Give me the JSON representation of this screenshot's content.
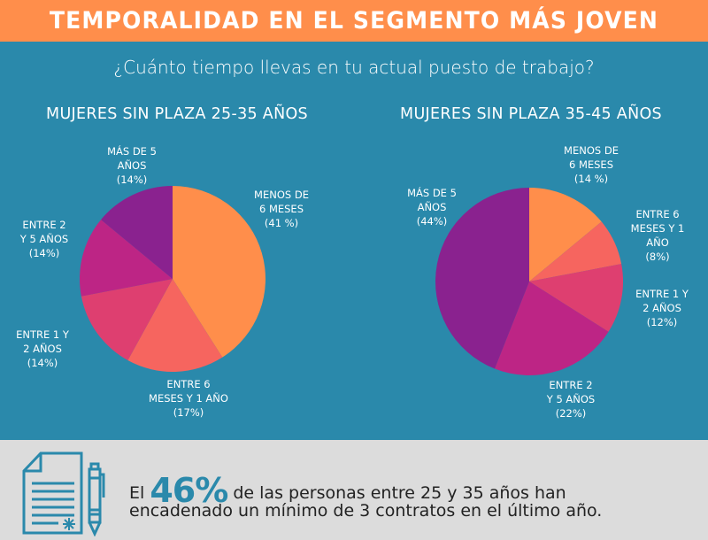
{
  "header": {
    "title": "TEMPORALIDAD EN EL SEGMENTO MÁS JOVEN"
  },
  "question": "¿Cuánto tiempo llevas en tu actual puesto de trabajo?",
  "colors": {
    "header_bg": "#ff8e4b",
    "main_bg": "#2a89ab",
    "footer_bg": "#dcdcdc",
    "accent": "#2a89ab"
  },
  "chart_data": [
    {
      "type": "pie",
      "title": "MUJERES SIN PLAZA 25-35 AÑOS",
      "start": "top",
      "direction": "clockwise",
      "slices": [
        {
          "label_lines": [
            "MENOS DE",
            "6 MESES",
            "(41 %)"
          ],
          "category": "Menos de 6 meses",
          "value": 41,
          "color": "#ff8e4b"
        },
        {
          "label_lines": [
            "ENTRE 6",
            "MESES Y 1 AÑO",
            "(17%)"
          ],
          "category": "Entre 6 meses y 1 año",
          "value": 17,
          "color": "#f6655f"
        },
        {
          "label_lines": [
            "ENTRE 1 Y",
            "2 AÑOS",
            "(14%)"
          ],
          "category": "Entre 1 y 2 años",
          "value": 14,
          "color": "#de3f70"
        },
        {
          "label_lines": [
            "ENTRE 2",
            "Y 5 AÑOS",
            "(14%)"
          ],
          "category": "Entre 2 y 5 años",
          "value": 14,
          "color": "#bd2585"
        },
        {
          "label_lines": [
            "MÁS DE 5",
            "AÑOS",
            "(14%)"
          ],
          "category": "Más de 5 años",
          "value": 14,
          "color": "#8a228f"
        }
      ]
    },
    {
      "type": "pie",
      "title": "MUJERES SIN PLAZA 35-45 AÑOS",
      "start": "top",
      "direction": "clockwise",
      "slices": [
        {
          "label_lines": [
            "MENOS DE",
            "6 MESES",
            "(14 %)"
          ],
          "category": "Menos de 6 meses",
          "value": 14,
          "color": "#ff8e4b"
        },
        {
          "label_lines": [
            "ENTRE 6",
            "MESES Y 1",
            "AÑO",
            "(8%)"
          ],
          "category": "Entre 6 meses y 1 año",
          "value": 8,
          "color": "#f6655f"
        },
        {
          "label_lines": [
            "ENTRE 1 Y",
            "2 AÑOS",
            "(12%)"
          ],
          "category": "Entre 1 y 2 años",
          "value": 12,
          "color": "#de3f70"
        },
        {
          "label_lines": [
            "ENTRE 2",
            "Y 5 AÑOS",
            "(22%)"
          ],
          "category": "Entre 2 y 5 años",
          "value": 22,
          "color": "#bd2585"
        },
        {
          "label_lines": [
            "MÁS DE 5",
            "AÑOS",
            "(44%)"
          ],
          "category": "Más de 5 años",
          "value": 44,
          "color": "#8a228f"
        }
      ]
    }
  ],
  "footer": {
    "icon": "contract-document-pen-icon",
    "stat_prefix": "El",
    "stat_value": "46%",
    "stat_line1_rest": "de las personas entre 25 y 35 años han",
    "stat_line2": "encadenado un mínimo de 3 contratos en el último año."
  }
}
